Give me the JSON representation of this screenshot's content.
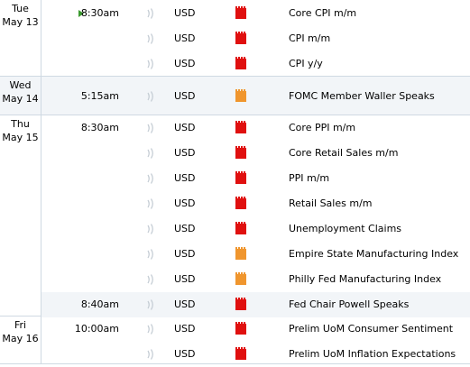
{
  "colors": {
    "high_impact": "#e0100f",
    "medium_impact": "#f0962e",
    "row_shade": "#f2f5f8",
    "current_marker": "#3a9a2e"
  },
  "days": [
    {
      "dow": "Tue",
      "dm": "May 13",
      "events": [
        {
          "time": "8:30am",
          "currency": "USD",
          "impact": "high",
          "title": "Core CPI m/m",
          "current": true,
          "icon": "speaker-icon"
        },
        {
          "time": "",
          "currency": "USD",
          "impact": "high",
          "title": "CPI m/m",
          "icon": "speaker-icon"
        },
        {
          "time": "",
          "currency": "USD",
          "impact": "high",
          "title": "CPI y/y",
          "icon": "speaker-icon"
        }
      ]
    },
    {
      "dow": "Wed",
      "dm": "May 14",
      "events": [
        {
          "time": "5:15am",
          "currency": "USD",
          "impact": "medium",
          "title": "FOMC Member Waller Speaks",
          "icon": "speaker-icon"
        }
      ]
    },
    {
      "dow": "Thu",
      "dm": "May 15",
      "events": [
        {
          "time": "8:30am",
          "currency": "USD",
          "impact": "high",
          "title": "Core PPI m/m",
          "icon": "speaker-icon"
        },
        {
          "time": "",
          "currency": "USD",
          "impact": "high",
          "title": "Core Retail Sales m/m",
          "icon": "speaker-icon"
        },
        {
          "time": "",
          "currency": "USD",
          "impact": "high",
          "title": "PPI m/m",
          "icon": "speaker-icon"
        },
        {
          "time": "",
          "currency": "USD",
          "impact": "high",
          "title": "Retail Sales m/m",
          "icon": "speaker-icon"
        },
        {
          "time": "",
          "currency": "USD",
          "impact": "high",
          "title": "Unemployment Claims",
          "icon": "speaker-icon"
        },
        {
          "time": "",
          "currency": "USD",
          "impact": "medium",
          "title": "Empire State Manufacturing Index",
          "icon": "speaker-icon"
        },
        {
          "time": "",
          "currency": "USD",
          "impact": "medium",
          "title": "Philly Fed Manufacturing Index",
          "icon": "speaker-icon"
        },
        {
          "time": "8:40am",
          "currency": "USD",
          "impact": "high",
          "title": "Fed Chair Powell Speaks",
          "icon": "speaker-icon"
        }
      ]
    },
    {
      "dow": "Fri",
      "dm": "May 16",
      "events": [
        {
          "time": "10:00am",
          "currency": "USD",
          "impact": "high",
          "title": "Prelim UoM Consumer Sentiment",
          "icon": "speaker-icon"
        },
        {
          "time": "",
          "currency": "USD",
          "impact": "high",
          "title": "Prelim UoM Inflation Expectations",
          "icon": "speaker-icon"
        }
      ]
    }
  ]
}
